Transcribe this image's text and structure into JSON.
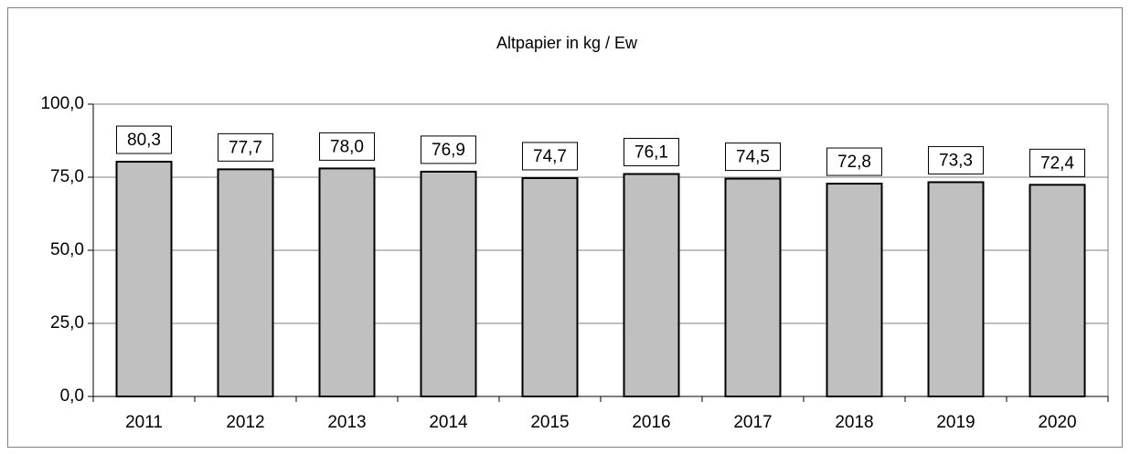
{
  "chart_data": {
    "type": "bar",
    "title": "Altpapier in kg / Ew",
    "categories": [
      "2011",
      "2012",
      "2013",
      "2014",
      "2015",
      "2016",
      "2017",
      "2018",
      "2019",
      "2020"
    ],
    "values": [
      80.3,
      77.7,
      78.0,
      76.9,
      74.7,
      76.1,
      74.5,
      72.8,
      73.3,
      72.4
    ],
    "value_labels": [
      "80,3",
      "77,7",
      "78,0",
      "76,9",
      "74,7",
      "76,1",
      "74,5",
      "72,8",
      "73,3",
      "72,4"
    ],
    "color": "#c0c0c0",
    "ylim": [
      0,
      100
    ],
    "yticks": [
      {
        "value": 0,
        "label": "0,0"
      },
      {
        "value": 25,
        "label": "25,0"
      },
      {
        "value": 50,
        "label": "50,0"
      },
      {
        "value": 75,
        "label": "75,0"
      },
      {
        "value": 100,
        "label": "100,0"
      }
    ],
    "grid": true
  }
}
